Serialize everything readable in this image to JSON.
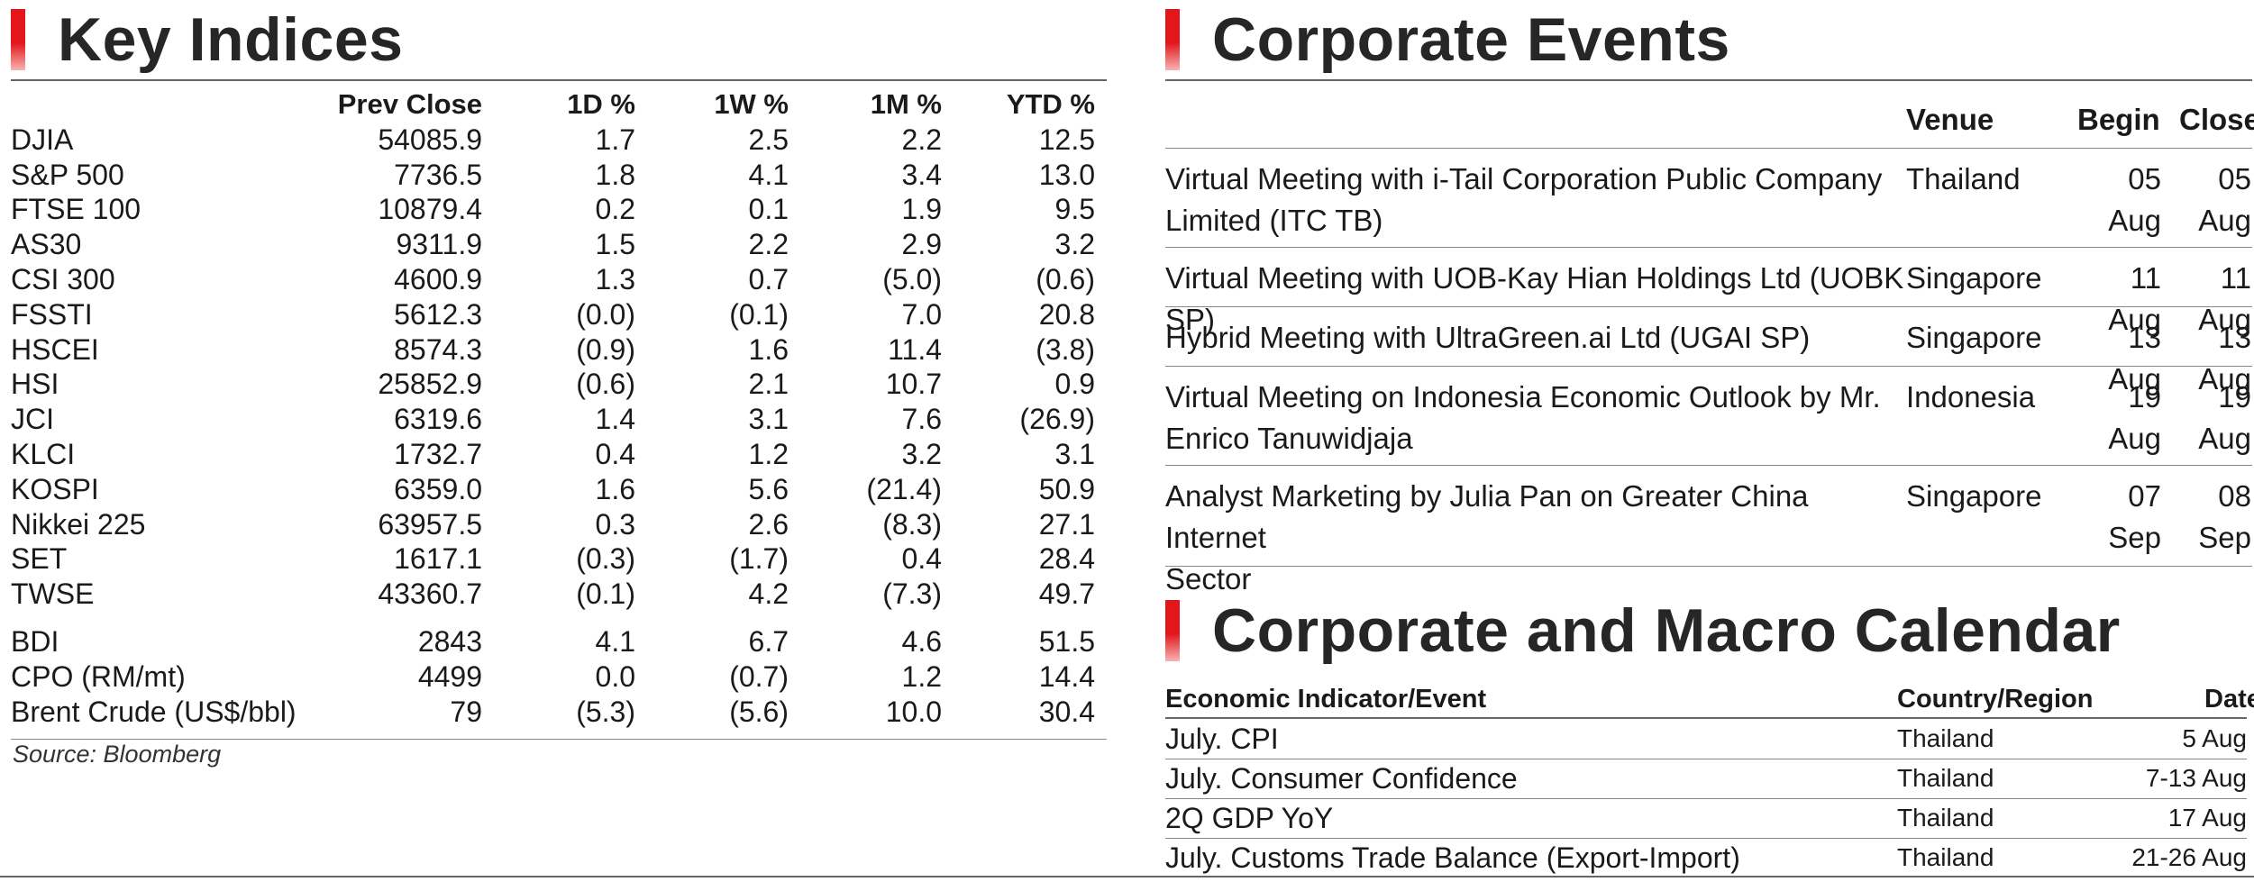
{
  "key_indices": {
    "title": "Key Indices",
    "headers": [
      "Prev Close",
      "1D %",
      "1W %",
      "1M %",
      "YTD %"
    ],
    "rows": [
      {
        "name": "DJIA",
        "values": [
          "54085.9",
          "1.7",
          "2.5",
          "2.2",
          "12.5"
        ]
      },
      {
        "name": "S&P 500",
        "values": [
          "7736.5",
          "1.8",
          "4.1",
          "3.4",
          "13.0"
        ]
      },
      {
        "name": "FTSE 100",
        "values": [
          "10879.4",
          "0.2",
          "0.1",
          "1.9",
          "9.5"
        ]
      },
      {
        "name": "AS30",
        "values": [
          "9311.9",
          "1.5",
          "2.2",
          "2.9",
          "3.2"
        ]
      },
      {
        "name": "CSI 300",
        "values": [
          "4600.9",
          "1.3",
          "0.7",
          "(5.0)",
          "(0.6)"
        ]
      },
      {
        "name": "FSSTI",
        "values": [
          "5612.3",
          "(0.0)",
          "(0.1)",
          "7.0",
          "20.8"
        ]
      },
      {
        "name": "HSCEI",
        "values": [
          "8574.3",
          "(0.9)",
          "1.6",
          "11.4",
          "(3.8)"
        ]
      },
      {
        "name": "HSI",
        "values": [
          "25852.9",
          "(0.6)",
          "2.1",
          "10.7",
          "0.9"
        ]
      },
      {
        "name": "JCI",
        "values": [
          "6319.6",
          "1.4",
          "3.1",
          "7.6",
          "(26.9)"
        ]
      },
      {
        "name": "KLCI",
        "values": [
          "1732.7",
          "0.4",
          "1.2",
          "3.2",
          "3.1"
        ]
      },
      {
        "name": "KOSPI",
        "values": [
          "6359.0",
          "1.6",
          "5.6",
          "(21.4)",
          "50.9"
        ]
      },
      {
        "name": "Nikkei 225",
        "values": [
          "63957.5",
          "0.3",
          "2.6",
          "(8.3)",
          "27.1"
        ]
      },
      {
        "name": "SET",
        "values": [
          "1617.1",
          "(0.3)",
          "(1.7)",
          "0.4",
          "28.4"
        ]
      },
      {
        "name": "TWSE",
        "values": [
          "43360.7",
          "(0.1)",
          "4.2",
          "(7.3)",
          "49.7"
        ]
      }
    ],
    "commodities": [
      {
        "name": "BDI",
        "values": [
          "2843",
          "4.1",
          "6.7",
          "4.6",
          "51.5"
        ]
      },
      {
        "name": "CPO (RM/mt)",
        "values": [
          "4499",
          "0.0",
          "(0.7)",
          "1.2",
          "14.4"
        ]
      },
      {
        "name": "Brent Crude (US$/bbl)",
        "values": [
          "79",
          "(5.3)",
          "(5.6)",
          "10.0",
          "30.4"
        ]
      }
    ],
    "source": "Source: Bloomberg"
  },
  "corporate_events": {
    "title": "Corporate Events",
    "headers": {
      "venue": "Venue",
      "begin": "Begin",
      "close": "Close"
    },
    "rows": [
      {
        "event_line1": "Virtual Meeting with i-Tail Corporation Public Company",
        "event_line2": "Limited (ITC TB)",
        "venue": "Thailand",
        "begin": "05 Aug",
        "close": "05 Aug"
      },
      {
        "event_line1": "Virtual Meeting with UOB-Kay Hian Holdings Ltd (UOBK SP)",
        "event_line2": "",
        "venue": "Singapore",
        "begin": "11 Aug",
        "close": "11 Aug"
      },
      {
        "event_line1": "Hybrid Meeting with UltraGreen.ai Ltd (UGAI SP)",
        "event_line2": "",
        "venue": "Singapore",
        "begin": "13 Aug",
        "close": "13 Aug"
      },
      {
        "event_line1": "Virtual Meeting on Indonesia Economic Outlook by Mr.",
        "event_line2": "Enrico Tanuwidjaja",
        "venue": "Indonesia",
        "begin": "19 Aug",
        "close": "19 Aug"
      },
      {
        "event_line1": "Analyst Marketing by Julia Pan on Greater China Internet",
        "event_line2": "Sector",
        "venue": "Singapore",
        "begin": "07 Sep",
        "close": "08 Sep"
      }
    ]
  },
  "calendar": {
    "title": "Corporate and Macro Calendar",
    "headers": {
      "event": "Economic Indicator/Event",
      "country": "Country/Region",
      "date": "Date"
    },
    "rows": [
      {
        "event": "July. CPI",
        "country": "Thailand",
        "date": "5 Aug"
      },
      {
        "event": "July. Consumer Confidence",
        "country": "Thailand",
        "date": "7-13 Aug"
      },
      {
        "event": "2Q GDP YoY",
        "country": "Thailand",
        "date": "17 Aug"
      },
      {
        "event": "July. Customs Trade Balance (Export-Import)",
        "country": "Thailand",
        "date": "21-26 Aug"
      }
    ]
  },
  "colors": {
    "accent": "#e3161b",
    "rule": "#666666"
  }
}
